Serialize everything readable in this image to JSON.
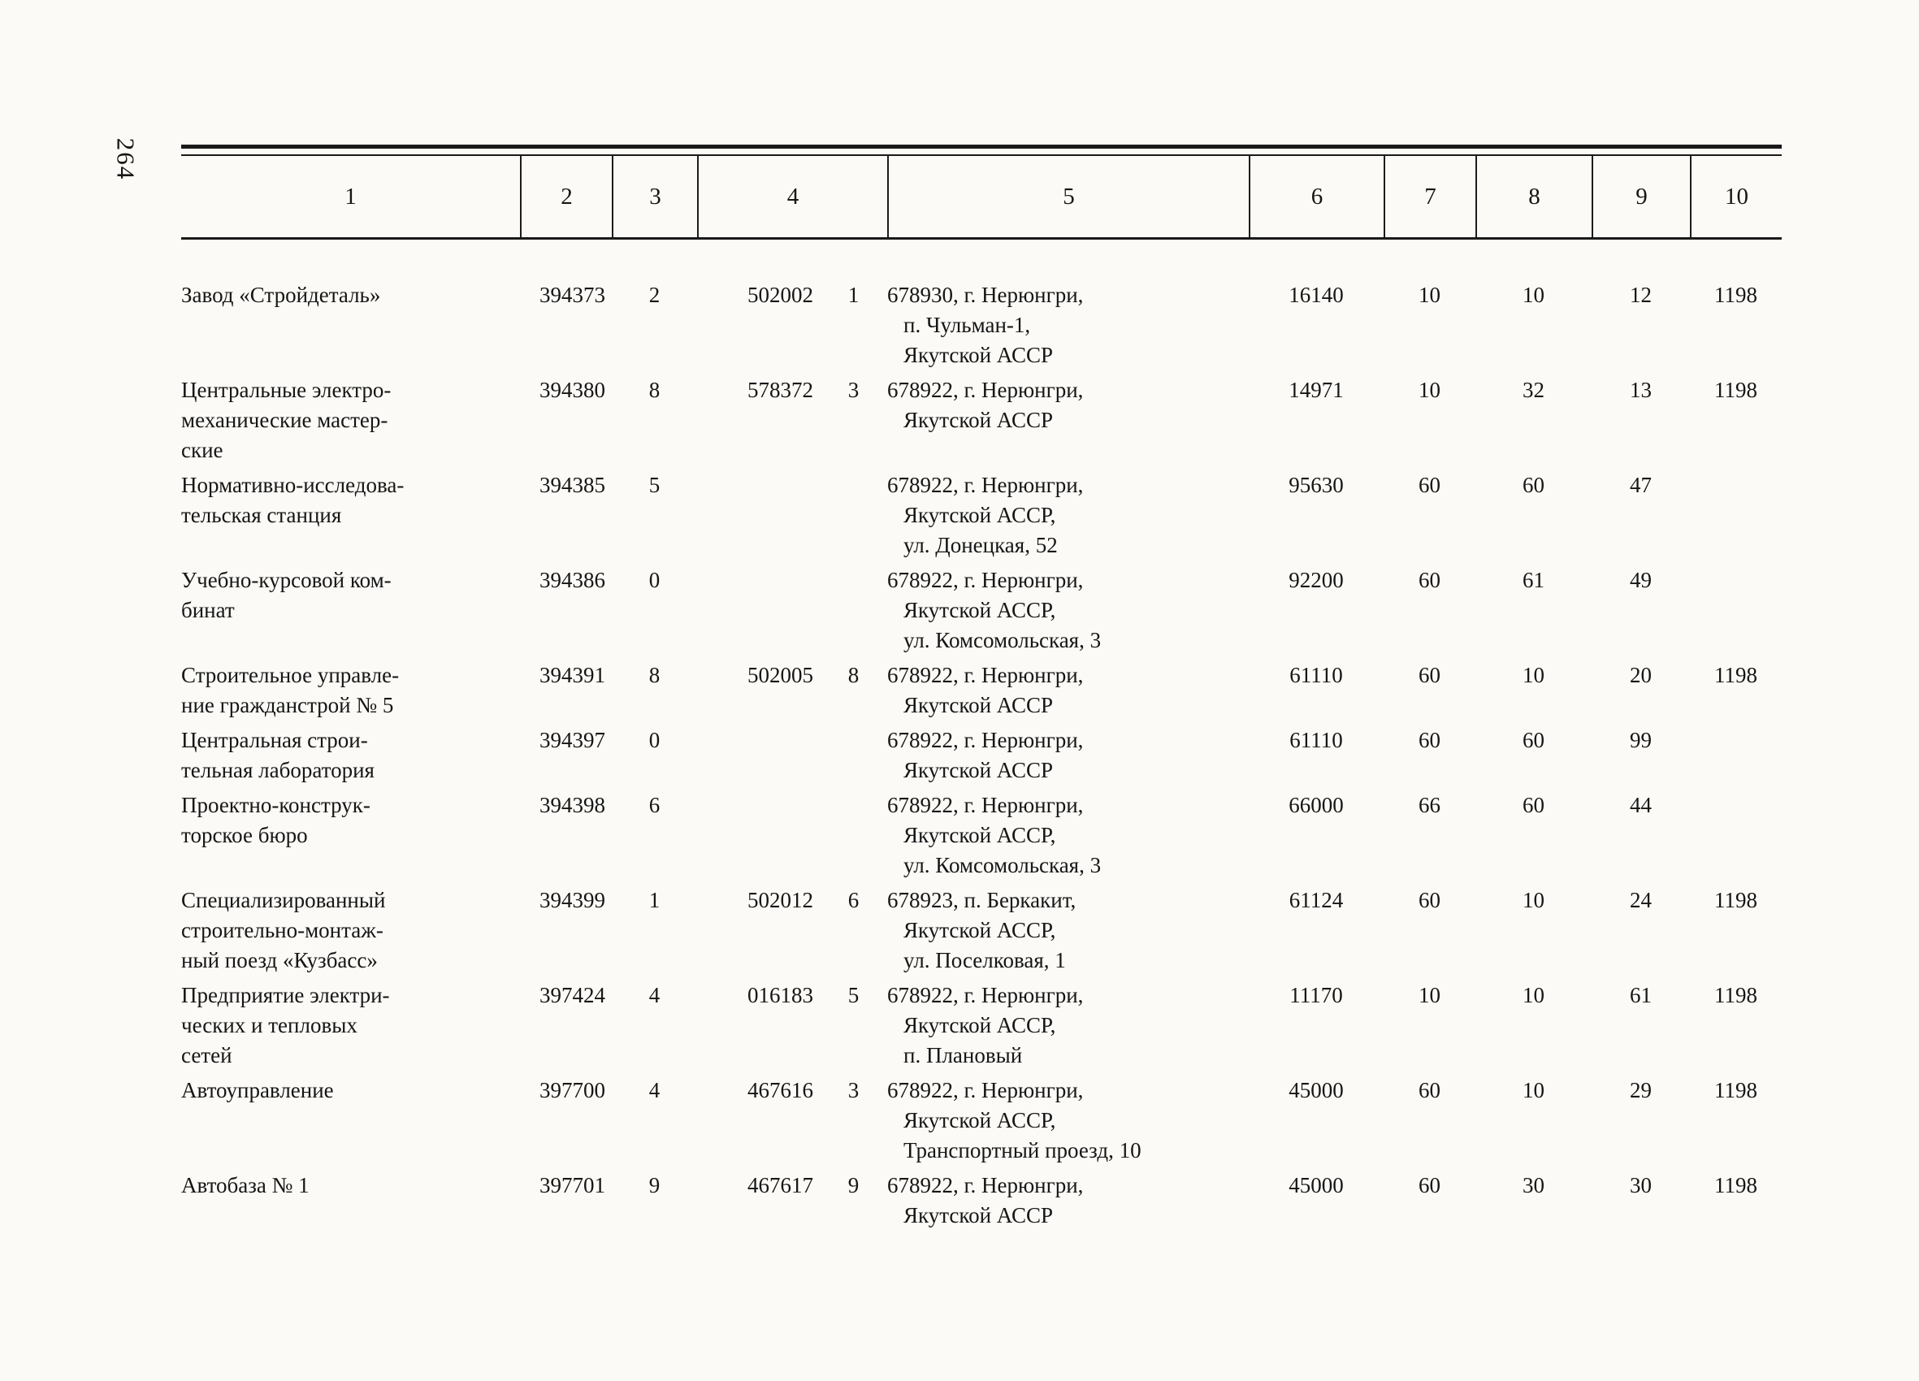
{
  "page": {
    "number": "264"
  },
  "table": {
    "headers": [
      "1",
      "2",
      "3",
      "4",
      "5",
      "6",
      "7",
      "8",
      "9",
      "10"
    ],
    "rows": [
      {
        "name": "Завод «Стройдеталь»",
        "c2": "394373",
        "c3": "2",
        "c4": "502002",
        "c4b": "1",
        "address": "678930, г. Нерюнгри,\nп. Чульман-1,\nЯкутской АССР",
        "c6": "16140",
        "c7": "10",
        "c8": "10",
        "c9": "12",
        "c10": "1198"
      },
      {
        "name": "Центральные электро-\nмеханические мастер-\nские",
        "c2": "394380",
        "c3": "8",
        "c4": "578372",
        "c4b": "3",
        "address": "678922, г. Нерюнгри,\nЯкутской АССР",
        "c6": "14971",
        "c7": "10",
        "c8": "32",
        "c9": "13",
        "c10": "1198"
      },
      {
        "name": "Нормативно-исследова-\nтельская станция",
        "c2": "394385",
        "c3": "5",
        "c4": "",
        "c4b": "",
        "address": "678922, г. Нерюнгри,\nЯкутской АССР,\nул. Донецкая, 52",
        "c6": "95630",
        "c7": "60",
        "c8": "60",
        "c9": "47",
        "c10": ""
      },
      {
        "name": "Учебно-курсовой ком-\nбинат",
        "c2": "394386",
        "c3": "0",
        "c4": "",
        "c4b": "",
        "address": "678922, г. Нерюнгри,\nЯкутской АССР,\nул. Комсомольская, 3",
        "c6": "92200",
        "c7": "60",
        "c8": "61",
        "c9": "49",
        "c10": ""
      },
      {
        "name": "Строительное управле-\nние гражданстрой № 5",
        "c2": "394391",
        "c3": "8",
        "c4": "502005",
        "c4b": "8",
        "address": "678922, г. Нерюнгри,\nЯкутской АССР",
        "c6": "61110",
        "c7": "60",
        "c8": "10",
        "c9": "20",
        "c10": "1198"
      },
      {
        "name": "Центральная строи-\nтельная лаборатория",
        "c2": "394397",
        "c3": "0",
        "c4": "",
        "c4b": "",
        "address": "678922, г. Нерюнгри,\nЯкутской АССР",
        "c6": "61110",
        "c7": "60",
        "c8": "60",
        "c9": "99",
        "c10": ""
      },
      {
        "name": "Проектно-конструк-\nторское бюро",
        "c2": "394398",
        "c3": "6",
        "c4": "",
        "c4b": "",
        "address": "678922, г. Нерюнгри,\nЯкутской АССР,\nул. Комсомольская, 3",
        "c6": "66000",
        "c7": "66",
        "c8": "60",
        "c9": "44",
        "c10": ""
      },
      {
        "name": "Специализированный\nстроительно-монтаж-\nный поезд «Кузбасс»",
        "c2": "394399",
        "c3": "1",
        "c4": "502012",
        "c4b": "6",
        "address": "678923, п. Беркакит,\nЯкутской АССР,\nул. Поселковая, 1",
        "c6": "61124",
        "c7": "60",
        "c8": "10",
        "c9": "24",
        "c10": "1198"
      },
      {
        "name": "Предприятие электри-\nческих и тепловых\nсетей",
        "c2": "397424",
        "c3": "4",
        "c4": "016183",
        "c4b": "5",
        "address": "678922, г. Нерюнгри,\nЯкутской АССР,\nп. Плановый",
        "c6": "11170",
        "c7": "10",
        "c8": "10",
        "c9": "61",
        "c10": "1198"
      },
      {
        "name": "Автоуправление",
        "c2": "397700",
        "c3": "4",
        "c4": "467616",
        "c4b": "3",
        "address": "678922, г. Нерюнгри,\nЯкутской АССР,\nТранспортный проезд, 10",
        "c6": "45000",
        "c7": "60",
        "c8": "10",
        "c9": "29",
        "c10": "1198"
      },
      {
        "name": "Автобаза № 1",
        "c2": "397701",
        "c3": "9",
        "c4": "467617",
        "c4b": "9",
        "address": "678922, г. Нерюнгри,\nЯкутской АССР",
        "c6": "45000",
        "c7": "60",
        "c8": "30",
        "c9": "30",
        "c10": "1198"
      }
    ]
  }
}
